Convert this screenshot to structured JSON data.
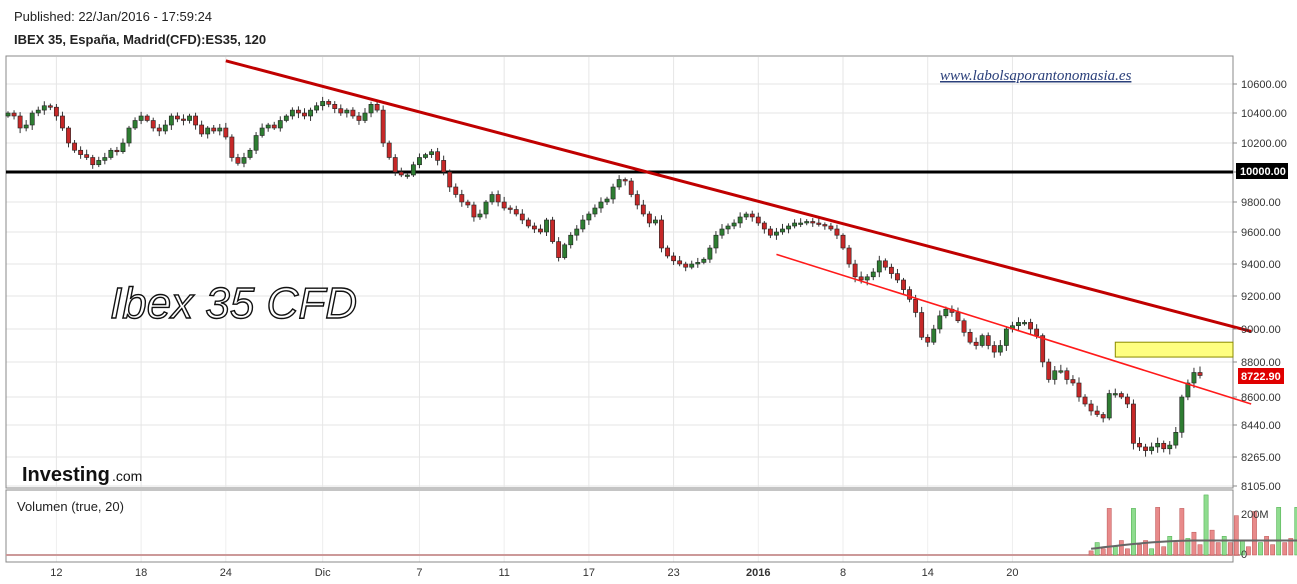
{
  "header": {
    "published": "Published: 22/Jan/2016 - 17:59:24",
    "instrument": "IBEX 35, España, Madrid(CFD):ES35, 120"
  },
  "watermark": "www.labolsaporantonomasia.es",
  "overlay_title": "Ibex 35 CFD",
  "logo": {
    "brand": "Investing",
    "suffix": ".com"
  },
  "volume_panel": {
    "label": "Volumen (true, 20)",
    "tick_labels": [
      "200M",
      "0"
    ]
  },
  "colors": {
    "up": "#2e7d32",
    "down": "#c62828",
    "trendline": "#c00000",
    "support": "#000000",
    "zone": "#ffff80",
    "price_badge": "#e00000",
    "vol_up": "#8fdc8f",
    "vol_down": "#e88a8a"
  },
  "chart_data": {
    "type": "candlestick",
    "ylim": [
      8105,
      10700
    ],
    "y_ticks": [
      {
        "value": 10600,
        "label": "10600.00"
      },
      {
        "value": 10400,
        "label": "10400.00"
      },
      {
        "value": 10200,
        "label": "10200.00"
      },
      {
        "value": 10000,
        "label": "10000.00"
      },
      {
        "value": 9800,
        "label": "9800.00"
      },
      {
        "value": 9600,
        "label": "9600.00"
      },
      {
        "value": 9400,
        "label": "9400.00"
      },
      {
        "value": 9200,
        "label": "9200.00"
      },
      {
        "value": 9000,
        "label": "9000.00"
      },
      {
        "value": 8800,
        "label": "8800.00"
      },
      {
        "value": 8600,
        "label": "8600.00"
      },
      {
        "value": 8440,
        "label": "8440.00"
      },
      {
        "value": 8265,
        "label": "8265.00"
      },
      {
        "value": 8105,
        "label": "8105.00"
      }
    ],
    "x_ticks": [
      {
        "label": "12",
        "index": 8,
        "bold": false
      },
      {
        "label": "18",
        "index": 22,
        "bold": false
      },
      {
        "label": "24",
        "index": 36,
        "bold": false
      },
      {
        "label": "Dic",
        "index": 52,
        "bold": false
      },
      {
        "label": "7",
        "index": 68,
        "bold": false
      },
      {
        "label": "11",
        "index": 82,
        "bold": false
      },
      {
        "label": "17",
        "index": 96,
        "bold": false
      },
      {
        "label": "23",
        "index": 110,
        "bold": false
      },
      {
        "label": "2016",
        "index": 124,
        "bold": true
      },
      {
        "label": "8",
        "index": 138,
        "bold": false
      },
      {
        "label": "14",
        "index": 152,
        "bold": false
      },
      {
        "label": "20",
        "index": 166,
        "bold": false
      }
    ],
    "price_points": [
      10400,
      10380,
      10300,
      10320,
      10400,
      10420,
      10450,
      10440,
      10380,
      10300,
      10200,
      10150,
      10120,
      10100,
      10050,
      10080,
      10100,
      10150,
      10140,
      10200,
      10300,
      10350,
      10380,
      10350,
      10300,
      10280,
      10320,
      10380,
      10360,
      10350,
      10380,
      10320,
      10260,
      10300,
      10280,
      10300,
      10240,
      10100,
      10060,
      10100,
      10150,
      10250,
      10300,
      10320,
      10300,
      10350,
      10380,
      10420,
      10400,
      10380,
      10420,
      10450,
      10480,
      10460,
      10430,
      10400,
      10420,
      10380,
      10350,
      10400,
      10460,
      10420,
      10200,
      10100,
      10000,
      9980,
      9980,
      10050,
      10100,
      10120,
      10140,
      10080,
      10000,
      9900,
      9850,
      9800,
      9780,
      9700,
      9720,
      9800,
      9850,
      9800,
      9760,
      9750,
      9720,
      9680,
      9640,
      9620,
      9600,
      9680,
      9540,
      9440,
      9520,
      9580,
      9620,
      9680,
      9720,
      9760,
      9800,
      9820,
      9900,
      9950,
      9940,
      9850,
      9780,
      9720,
      9660,
      9680,
      9500,
      9450,
      9420,
      9400,
      9380,
      9400,
      9410,
      9430,
      9500,
      9580,
      9620,
      9640,
      9660,
      9700,
      9720,
      9700,
      9660,
      9620,
      9580,
      9600,
      9620,
      9640,
      9660,
      9660,
      9670,
      9660,
      9650,
      9640,
      9620,
      9580,
      9500,
      9400,
      9320,
      9300,
      9320,
      9350,
      9420,
      9380,
      9340,
      9300,
      9240,
      9180,
      9100,
      8950,
      8920,
      9000,
      9080,
      9120,
      9100,
      9050,
      8980,
      8920,
      8900,
      8960,
      8900,
      8860,
      8900,
      9000,
      9020,
      9040,
      9040,
      9000,
      8960,
      8800,
      8700,
      8750,
      8750,
      8700,
      8680,
      8600,
      8560,
      8520,
      8500,
      8480,
      8620,
      8620,
      8600,
      8560,
      8340,
      8320,
      8300,
      8320,
      8340,
      8310,
      8330,
      8400,
      8600,
      8680,
      8740,
      8722.9
    ],
    "trendlines": [
      {
        "from": [
          36,
          10760
        ],
        "to": [
          200,
          8985
        ]
      },
      {
        "from": [
          127,
          9460
        ],
        "to": [
          200,
          8560
        ]
      }
    ],
    "support_level": 10000,
    "resistance_zone": [
      8830,
      8920
    ],
    "last_price": 8722.9,
    "last_price_label": "8722.90",
    "support_label": "10000.00",
    "volume_max": 280,
    "volume": [
      {
        "index": 179,
        "value": 20
      },
      {
        "index": 180,
        "value": 60
      },
      {
        "index": 181,
        "value": 30
      },
      {
        "index": 182,
        "value": 225
      },
      {
        "index": 183,
        "value": 40
      },
      {
        "index": 184,
        "value": 70
      },
      {
        "index": 185,
        "value": 30
      },
      {
        "index": 186,
        "value": 225
      },
      {
        "index": 187,
        "value": 50
      },
      {
        "index": 188,
        "value": 70
      },
      {
        "index": 189,
        "value": 30
      },
      {
        "index": 190,
        "value": 230
      },
      {
        "index": 191,
        "value": 40
      },
      {
        "index": 192,
        "value": 90
      },
      {
        "index": 193,
        "value": 60
      },
      {
        "index": 194,
        "value": 225
      },
      {
        "index": 195,
        "value": 80
      },
      {
        "index": 196,
        "value": 110
      },
      {
        "index": 197,
        "value": 50
      },
      {
        "index": 198,
        "value": 290
      },
      {
        "index": 199,
        "value": 120
      },
      {
        "index": 200,
        "value": 60
      },
      {
        "index": 201,
        "value": 90
      },
      {
        "index": 202,
        "value": 60
      },
      {
        "index": 203,
        "value": 190
      },
      {
        "index": 204,
        "value": 70
      },
      {
        "index": 205,
        "value": 40
      },
      {
        "index": 206,
        "value": 210
      },
      {
        "index": 207,
        "value": 60
      },
      {
        "index": 208,
        "value": 90
      },
      {
        "index": 209,
        "value": 50
      },
      {
        "index": 210,
        "value": 230
      },
      {
        "index": 211,
        "value": 60
      },
      {
        "index": 212,
        "value": 80
      },
      {
        "index": 213,
        "value": 230
      },
      {
        "index": 214,
        "value": 60
      },
      {
        "index": 215,
        "value": 30
      }
    ]
  }
}
